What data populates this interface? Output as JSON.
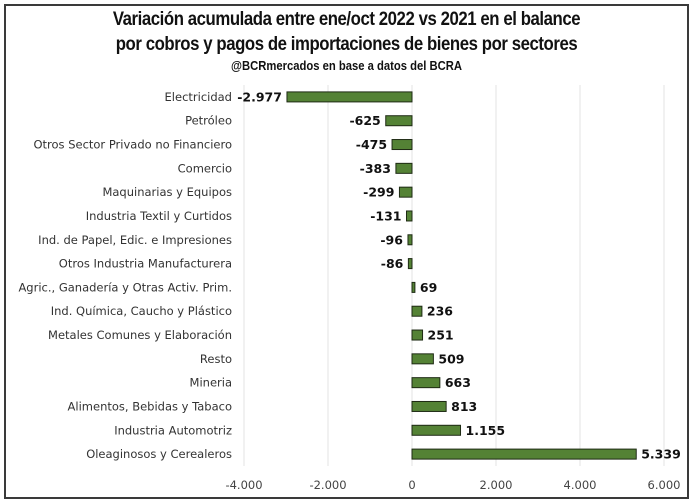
{
  "chart_data": {
    "type": "bar",
    "orientation": "horizontal",
    "title": "Variación acumulada entre ene/oct 2022 vs 2021 en el balance",
    "title_line2": "por cobros y pagos de importaciones de bienes por sectores",
    "subtitle": "@BCRmercados en base a datos del BCRA",
    "xlabel": "",
    "ylabel": "",
    "categories": [
      "Electricidad",
      "Petróleo",
      "Otros Sector Privado no Financiero",
      "Comercio",
      "Maquinarias y Equipos",
      "Industria Textil y Curtidos",
      "Ind. de Papel, Edic. e Impresiones",
      "Otros Industria Manufacturera",
      "Agric., Ganadería y Otras Activ. Prim.",
      "Ind. Química, Caucho y Plástico",
      "Metales Comunes y Elaboración",
      "Resto",
      "Mineria",
      "Alimentos, Bebidas y Tabaco",
      "Industria Automotriz",
      "Oleaginosos y Cerealeros"
    ],
    "values": [
      -2977,
      -625,
      -475,
      -383,
      -299,
      -131,
      -96,
      -86,
      69,
      236,
      251,
      509,
      663,
      813,
      1155,
      5339
    ],
    "value_labels": [
      "-2.977",
      "-625",
      "-475",
      "-383",
      "-299",
      "-131",
      "-96",
      "-86",
      "69",
      "236",
      "251",
      "509",
      "663",
      "813",
      "1.155",
      "5.339"
    ],
    "xlim": [
      -4000,
      6000
    ],
    "xticks": [
      -4000,
      -2000,
      0,
      2000,
      4000,
      6000
    ],
    "xtick_labels": [
      "-4.000",
      "-2.000",
      "0",
      "2.000",
      "4.000",
      "6.000"
    ],
    "grid": true,
    "legend": "none",
    "bar_color": "#548235",
    "bar_edge_color": "#1e2a14"
  }
}
